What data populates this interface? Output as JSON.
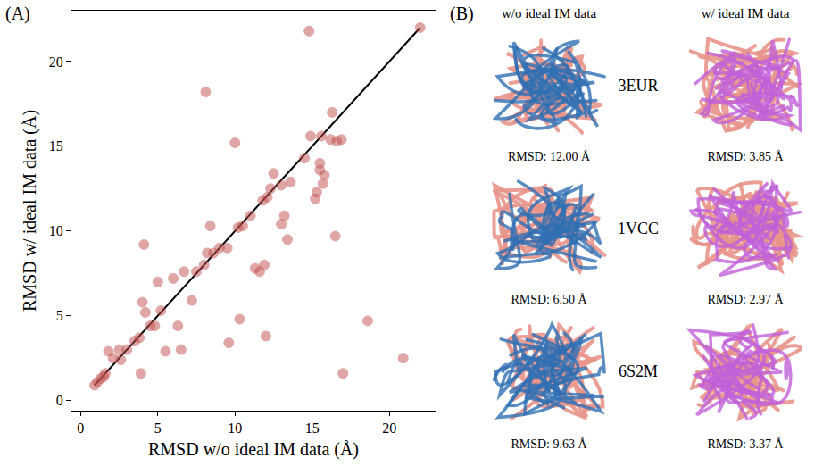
{
  "chart_data": {
    "type": "scatter",
    "x_label": "RMSD w/o ideal IM data (Å)",
    "y_label": "RMSD w/ ideal IM data (Å)",
    "x": [
      0.9,
      1.1,
      1.3,
      1.5,
      1.6,
      1.8,
      2.1,
      2.5,
      2.6,
      3.0,
      3.5,
      3.8,
      3.9,
      4.0,
      4.1,
      4.2,
      4.5,
      4.8,
      5.0,
      5.2,
      5.5,
      6.0,
      6.3,
      6.5,
      6.7,
      7.2,
      7.5,
      8.0,
      8.1,
      8.2,
      8.4,
      8.6,
      9.0,
      9.6,
      9.5,
      10.0,
      10.2,
      10.3,
      10.5,
      11.0,
      11.3,
      11.6,
      11.8,
      11.9,
      12.0,
      12.1,
      12.3,
      12.5,
      13.0,
      13.0,
      13.2,
      13.4,
      13.6,
      14.5,
      14.8,
      14.9,
      15.2,
      15.3,
      15.5,
      15.5,
      15.6,
      15.7,
      15.8,
      16.2,
      16.3,
      16.5,
      16.6,
      16.9,
      17.0,
      18.6,
      20.9,
      22.0
    ],
    "values": [
      0.9,
      1.1,
      1.3,
      1.4,
      1.6,
      2.9,
      2.5,
      3.0,
      2.4,
      3.0,
      3.5,
      3.7,
      1.6,
      5.8,
      9.2,
      5.2,
      4.4,
      4.4,
      7.0,
      5.3,
      2.9,
      7.2,
      4.4,
      3.0,
      7.6,
      5.9,
      7.6,
      8.0,
      18.2,
      8.7,
      10.3,
      8.7,
      9.0,
      3.4,
      9.0,
      15.2,
      10.2,
      4.8,
      10.3,
      10.9,
      7.8,
      7.6,
      11.8,
      8.0,
      3.8,
      12.0,
      12.5,
      13.4,
      12.7,
      10.4,
      10.9,
      9.5,
      12.9,
      14.3,
      21.8,
      15.6,
      11.9,
      12.3,
      14.0,
      13.6,
      15.6,
      12.8,
      13.3,
      15.4,
      17.0,
      9.7,
      15.3,
      15.4,
      1.6,
      4.7,
      2.5,
      22.0
    ],
    "color": "#c0504d",
    "marker": "circle",
    "xlim": [
      -0.6,
      23
    ],
    "ylim": [
      -0.6,
      23
    ],
    "xticks": [
      0,
      5,
      10,
      15,
      20
    ],
    "yticks": [
      0,
      5,
      10,
      15,
      20
    ],
    "grid": false,
    "reference_line": {
      "x": [
        0.9,
        22
      ],
      "values": [
        0.9,
        22
      ],
      "color": "#000000",
      "line_style": "solid"
    }
  },
  "panel_labels": [
    "(A)",
    "(B)"
  ],
  "structures": {
    "column_titles": [
      "w/o ideal IM data",
      "w/ ideal IM data"
    ],
    "rows": [
      {
        "name": "3EUR",
        "rmsd_without": "RMSD: 12.00 Å",
        "rmsd_with": "RMSD: 3.85 Å"
      },
      {
        "name": "1VCC",
        "rmsd_without": "RMSD: 6.50 Å",
        "rmsd_with": "RMSD: 2.97 Å"
      },
      {
        "name": "6S2M",
        "rmsd_without": "RMSD: 9.63 Å",
        "rmsd_with": "RMSD: 3.37 Å"
      }
    ]
  }
}
